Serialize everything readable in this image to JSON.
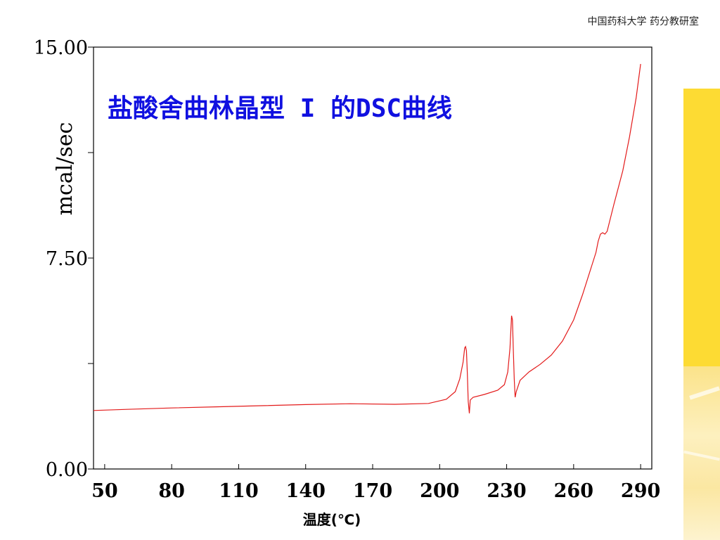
{
  "header": {
    "institution": "中国药科大学  药分教研室"
  },
  "colors": {
    "curve": "#e31a1a",
    "title": "#1010e0",
    "accent_bar": "#fddb33"
  },
  "chart_data": {
    "type": "line",
    "title": "盐酸舍曲林晶型 I 的DSC曲线",
    "xlabel": "温度(℃)",
    "ylabel": "mcal/sec",
    "xlim": [
      45,
      295
    ],
    "ylim": [
      0,
      15
    ],
    "x_ticks": [
      50,
      80,
      110,
      140,
      170,
      200,
      230,
      260,
      290
    ],
    "x_tick_labels": [
      "50",
      "80",
      "110",
      "140",
      "170",
      "200",
      "230",
      "260",
      "290"
    ],
    "y_ticks": [
      0,
      3.75,
      7.5,
      11.25,
      15
    ],
    "y_tick_labels": [
      "0.00",
      "",
      "7.50",
      "",
      "15.00"
    ],
    "grid": false,
    "series": [
      {
        "values": [
          [
            45,
            2.08
          ],
          [
            60,
            2.12
          ],
          [
            80,
            2.17
          ],
          [
            100,
            2.21
          ],
          [
            120,
            2.25
          ],
          [
            140,
            2.29
          ],
          [
            160,
            2.32
          ],
          [
            180,
            2.3
          ],
          [
            195,
            2.33
          ],
          [
            203,
            2.48
          ],
          [
            207,
            2.75
          ],
          [
            209,
            3.2
          ],
          [
            210.5,
            3.8
          ],
          [
            211.2,
            4.3
          ],
          [
            211.6,
            4.35
          ],
          [
            212,
            4.2
          ],
          [
            212.4,
            3.4
          ],
          [
            212.8,
            2.4
          ],
          [
            213.3,
            1.98
          ],
          [
            213.7,
            2.45
          ],
          [
            215,
            2.55
          ],
          [
            220,
            2.65
          ],
          [
            226,
            2.8
          ],
          [
            229,
            3.0
          ],
          [
            230.5,
            3.45
          ],
          [
            231.5,
            4.3
          ],
          [
            232.2,
            5.45
          ],
          [
            232.6,
            5.3
          ],
          [
            233,
            4.2
          ],
          [
            233.4,
            3.2
          ],
          [
            233.8,
            2.55
          ],
          [
            234.3,
            2.75
          ],
          [
            236,
            3.15
          ],
          [
            240,
            3.45
          ],
          [
            245,
            3.72
          ],
          [
            250,
            4.05
          ],
          [
            255,
            4.55
          ],
          [
            260,
            5.3
          ],
          [
            264,
            6.2
          ],
          [
            268,
            7.2
          ],
          [
            270,
            7.7
          ],
          [
            271,
            8.1
          ],
          [
            272,
            8.35
          ],
          [
            273,
            8.4
          ],
          [
            274,
            8.35
          ],
          [
            275,
            8.45
          ],
          [
            278,
            9.4
          ],
          [
            282,
            10.6
          ],
          [
            285,
            11.8
          ],
          [
            288,
            13.2
          ],
          [
            290,
            14.4
          ]
        ]
      }
    ]
  }
}
